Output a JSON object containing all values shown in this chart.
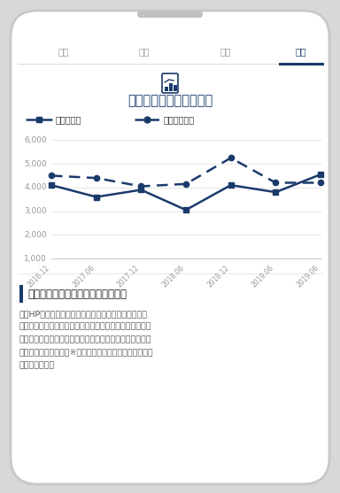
{
  "title": "周辺のマーケットデータ",
  "tab_labels": [
    "購入",
    "賞貸",
    "投資",
    "売却"
  ],
  "active_tab": "売却",
  "legend_label1": "行政区推移",
  "legend_label2": "最寄り駅推移",
  "x_labels": [
    "2016.12",
    "2017.06",
    "2017.12",
    "2018.06",
    "2018.12",
    "2019.06",
    "2019.06"
  ],
  "series1": [
    4100,
    3600,
    3900,
    3050,
    4100,
    3800,
    4550
  ],
  "series2": [
    4500,
    4400,
    4050,
    4150,
    5250,
    4200,
    4200
  ],
  "y_min": 1000,
  "y_max": 6500,
  "yticks": [
    1000,
    2000,
    3000,
    4000,
    5000,
    6000
  ],
  "line_color": "#1a3a6b",
  "bg_color": "#ffffff",
  "section_title": "東京都渋谷区道玄坤の売り出し履歴",
  "section_text_lines": [
    "当社HPで掲載していない物件も含む売出事例となりま",
    "す。価格は売出年月時点での売出価格であり、成約価格で",
    "はありません。また、価格変更時も売出年月として事例に",
    "追加されております。※コラビット社より提供されたデー",
    "タをもとに作成"
  ],
  "tab_color": "#1a3a6b",
  "grid_color": "#e8e8e8",
  "tick_color": "#999999",
  "text_color_dark": "#333333",
  "text_color_light": "#666666",
  "accent_bar_color": "#1a3a6b"
}
